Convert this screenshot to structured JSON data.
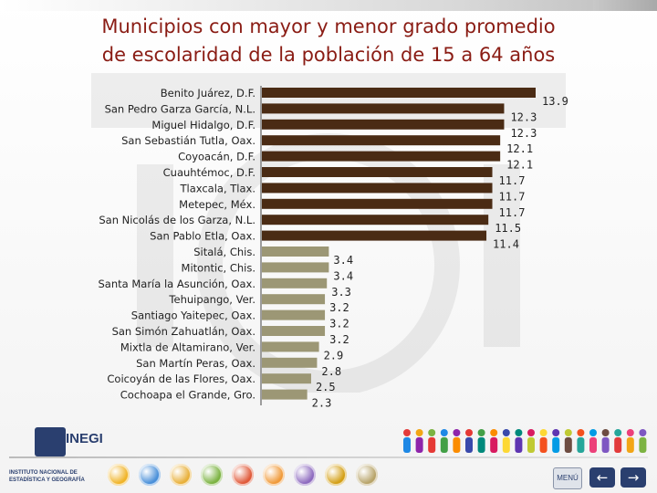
{
  "slide": {
    "title_line1": "Municipios con mayor y menor grado promedio",
    "title_line2": "de escolaridad de la población de 15 a 64 años"
  },
  "logo": {
    "name": "INEGI",
    "subtitle": "INSTITUTO NACIONAL DE ESTADÍSTICA Y GEOGRAFÍA"
  },
  "controls": {
    "menu_label": "MENÚ",
    "prev_icon": "arrow-left-icon",
    "next_icon": "arrow-right-icon"
  },
  "colors": {
    "title": "#8a1c14",
    "bar_top": "#4a2b14",
    "bar_bottom": "#9c9775",
    "axis": "#9c9c9c"
  },
  "chart_data": {
    "type": "bar",
    "orientation": "horizontal",
    "categories": [
      "Benito Juárez, D.F.",
      "San Pedro Garza García, N.L.",
      "Miguel Hidalgo, D.F.",
      "San Sebastián Tutla, Oax.",
      "Coyoacán, D.F.",
      "Cuauhtémoc, D.F.",
      "Tlaxcala, Tlax.",
      "Metepec, Méx.",
      "San Nicolás de los Garza, N.L.",
      "San Pablo Etla, Oax.",
      "Sitalá, Chis.",
      "Mitontic, Chis.",
      "Santa María la Asunción, Oax.",
      "Tehuipango, Ver.",
      "Santiago Yaitepec, Oax.",
      "San Simón Zahuatlán, Oax.",
      "Mixtla de Altamirano, Ver.",
      "San Martín Peras, Oax.",
      "Coicoyán de las Flores, Oax.",
      "Cochoapa el Grande, Gro."
    ],
    "values": [
      13.9,
      12.3,
      12.3,
      12.1,
      12.1,
      11.7,
      11.7,
      11.7,
      11.5,
      11.4,
      3.4,
      3.4,
      3.3,
      3.2,
      3.2,
      3.2,
      2.9,
      2.8,
      2.5,
      2.3
    ],
    "value_labels": [
      "13.9",
      "12.3",
      "12.3",
      "12.1",
      "12.1",
      "11.7",
      "11.7",
      "11.7",
      "11.5",
      "11.4",
      "3.4",
      "3.4",
      "3.3",
      "3.2",
      "3.2",
      "3.2",
      "2.9",
      "2.8",
      "2.5",
      "2.3"
    ],
    "xlim": [
      0,
      13.9
    ],
    "grid": false,
    "legend": "none"
  }
}
